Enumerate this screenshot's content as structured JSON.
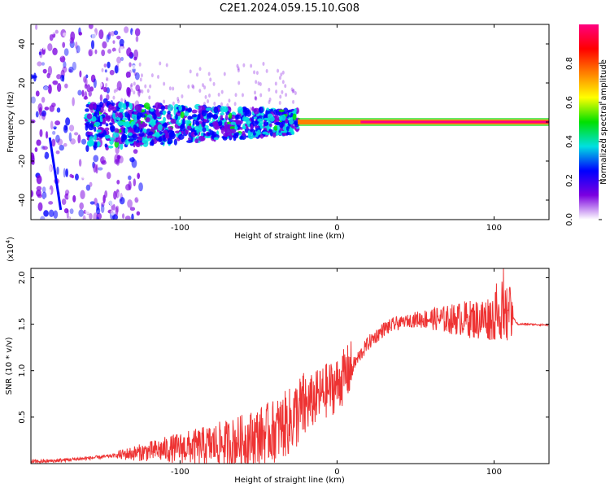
{
  "title": "C2E1.2024.059.15.10.G08",
  "chart_data": [
    {
      "type": "heatmap",
      "xlabel": "Height of straight line (km)",
      "ylabel": "Frequency (Hz)",
      "xlim": [
        -195,
        135
      ],
      "ylim": [
        -50,
        50
      ],
      "xticks": [
        -100,
        0,
        100
      ],
      "xticklabels": [
        "-100",
        "0",
        "100"
      ],
      "yticks": [
        -40,
        -20,
        0,
        20,
        40
      ],
      "yticklabels": [
        "-40",
        "-20",
        "0",
        "20",
        "40"
      ],
      "colorbar": {
        "label": "Normalized spectral amplitude",
        "range": [
          0,
          1
        ],
        "ticks": [
          "0.0",
          "0.2",
          "0.4",
          "0.6",
          "0.8"
        ],
        "colormap": [
          "#ffffff",
          "#7b00e0",
          "#0000ff",
          "#00e0e0",
          "#00e000",
          "#ffff00",
          "#ff8000",
          "#ff0000",
          "#ff0080"
        ]
      },
      "features": {
        "noise_region_x": [
          -195,
          -140
        ],
        "scattered_band_x": [
          -160,
          -25
        ],
        "stable_line_x": [
          -25,
          135
        ],
        "stable_line_frequency": 0
      }
    },
    {
      "type": "line",
      "xlabel": "Height of straight line (km)",
      "ylabel": "SNR (10 * v/v)",
      "yscale_label": "(x10",
      "yscale_exp": "4",
      "xlim": [
        -195,
        135
      ],
      "ylim": [
        0,
        2.1
      ],
      "xticks": [
        -100,
        0,
        100
      ],
      "xticklabels": [
        "-100",
        "0",
        "100"
      ],
      "yticks": [
        0.5,
        1.0,
        1.5,
        2.0
      ],
      "yticklabels": [
        "0.5",
        "1.0",
        "1.5",
        "2.0"
      ],
      "color": "#ee3333",
      "series": [
        {
          "x": [
            -195,
            -180,
            -165,
            -150,
            -140,
            -130,
            -120,
            -110,
            -100,
            -90,
            -80,
            -70,
            -60,
            -50,
            -40,
            -35,
            -30,
            -25,
            -20,
            -15,
            -10,
            -5,
            0,
            5,
            10,
            20,
            30,
            40,
            50,
            60,
            70,
            80,
            90,
            100,
            105,
            110,
            115,
            120,
            135
          ],
          "y": [
            0.02,
            0.03,
            0.05,
            0.07,
            0.09,
            0.11,
            0.13,
            0.15,
            0.17,
            0.18,
            0.2,
            0.22,
            0.25,
            0.3,
            0.35,
            0.4,
            0.45,
            0.55,
            0.62,
            0.68,
            0.75,
            0.8,
            0.85,
            0.95,
            1.05,
            1.3,
            1.45,
            1.52,
            1.55,
            1.56,
            1.55,
            1.56,
            1.55,
            1.58,
            1.6,
            1.62,
            1.5,
            1.5,
            1.49
          ]
        }
      ]
    }
  ]
}
